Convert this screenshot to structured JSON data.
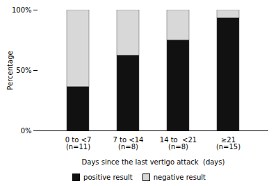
{
  "chart_data": {
    "type": "bar",
    "stacked": true,
    "categories": [
      "0 to <7\n(n=11)",
      "7 to <14\n(n=8)",
      "14 to  <21\n(n=8)",
      "≥21\n(n=15)"
    ],
    "series": [
      {
        "name": "positive result",
        "color": "#111111",
        "values": [
          36.36,
          62.5,
          75.0,
          93.33
        ]
      },
      {
        "name": "negative result",
        "color": "#d8d8d8",
        "values": [
          63.64,
          37.5,
          25.0,
          6.67
        ]
      }
    ],
    "xlabel": "Days since the last vertigo attack  (days)",
    "ylabel": "Percentage",
    "ylim": [
      0,
      100
    ],
    "yticks": [
      {
        "value": 0,
        "label": "0%"
      },
      {
        "value": 50,
        "label": "50%"
      },
      {
        "value": 100,
        "label": "100%"
      }
    ],
    "grid": false,
    "legend": "bottom"
  }
}
